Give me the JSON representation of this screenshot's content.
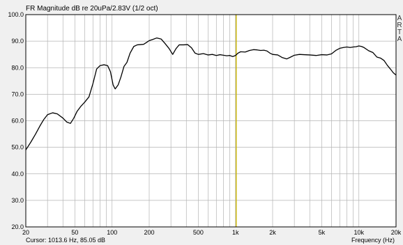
{
  "chart_data": {
    "type": "line",
    "title": "FR Magnitude dB re 20uPa/2.83V (1/2 oct)",
    "xlabel": "Frequency (Hz)",
    "ylabel": "",
    "x_scale": "log",
    "xlim": [
      20,
      20000
    ],
    "ylim": [
      20,
      100
    ],
    "y_ticks": [
      20,
      30,
      40,
      50,
      60,
      70,
      80,
      90,
      100
    ],
    "y_tick_labels": [
      "20.0",
      "30.0",
      "40.0",
      "50.0",
      "60.0",
      "70.0",
      "80.0",
      "90.0",
      "100.0"
    ],
    "x_ticks": [
      20,
      50,
      100,
      200,
      500,
      1000,
      2000,
      5000,
      10000,
      20000
    ],
    "x_tick_labels": [
      "20",
      "50",
      "100",
      "200",
      "500",
      "1k",
      "2k",
      "5k",
      "10k",
      "20k"
    ],
    "grid": true,
    "cursor": {
      "frequency": 1013.6,
      "value": 85.05,
      "label": "Cursor: 1013.6 Hz, 85.05 dB"
    },
    "watermark": "ARTA",
    "series": [
      {
        "color": "#000000",
        "x": [
          20,
          22,
          24,
          26,
          28,
          30,
          33,
          36,
          40,
          43,
          46,
          49,
          52,
          56,
          60,
          65,
          70,
          75,
          80,
          86,
          92,
          97,
          102,
          106,
          112,
          118,
          125,
          132,
          140,
          150,
          160,
          170,
          180,
          190,
          200,
          215,
          230,
          250,
          270,
          290,
          310,
          330,
          350,
          380,
          410,
          440,
          470,
          500,
          550,
          600,
          650,
          700,
          750,
          800,
          850,
          900,
          950,
          1000,
          1050,
          1100,
          1200,
          1300,
          1400,
          1500,
          1600,
          1700,
          1800,
          1900,
          2000,
          2200,
          2400,
          2600,
          2800,
          3000,
          3300,
          3600,
          4000,
          4500,
          5000,
          5500,
          6000,
          6500,
          7000,
          7500,
          8000,
          8500,
          9000,
          9500,
          10000,
          10500,
          11000,
          12000,
          13000,
          14000,
          15000,
          16000,
          17000,
          18000,
          19000,
          20000
        ],
        "y": [
          49,
          52,
          55,
          58,
          60.5,
          62.3,
          63.0,
          62.6,
          61.0,
          59.5,
          59.0,
          61.0,
          63.5,
          65.5,
          67.0,
          69.0,
          74,
          79.5,
          80.8,
          81.1,
          80.8,
          78.5,
          73.5,
          72.0,
          73.5,
          76.5,
          80.5,
          82.0,
          85.5,
          88.0,
          88.6,
          88.7,
          88.8,
          89.5,
          90.2,
          90.7,
          91.2,
          90.8,
          89.0,
          87.2,
          85.0,
          87.2,
          88.6,
          88.6,
          88.7,
          87.5,
          85.5,
          85.0,
          85.3,
          84.8,
          85.0,
          84.6,
          84.9,
          84.7,
          84.5,
          84.6,
          84.2,
          84.6,
          85.5,
          86.0,
          85.9,
          86.5,
          86.8,
          86.7,
          86.5,
          86.6,
          86.3,
          85.5,
          85.0,
          84.8,
          83.8,
          83.3,
          84.0,
          84.7,
          85.0,
          84.9,
          84.8,
          84.6,
          84.9,
          84.8,
          85.2,
          86.5,
          87.3,
          87.6,
          87.8,
          87.6,
          87.8,
          87.9,
          88.2,
          88.0,
          87.6,
          86.4,
          85.7,
          84.0,
          83.6,
          82.7,
          80.9,
          79.5,
          78.1,
          77.2
        ]
      }
    ]
  },
  "colors": {
    "background": "#f0f0f0",
    "plot": "#ffffff",
    "grid": "#b4b4b4",
    "trace": "#000000",
    "cursor": "#c8b400"
  }
}
